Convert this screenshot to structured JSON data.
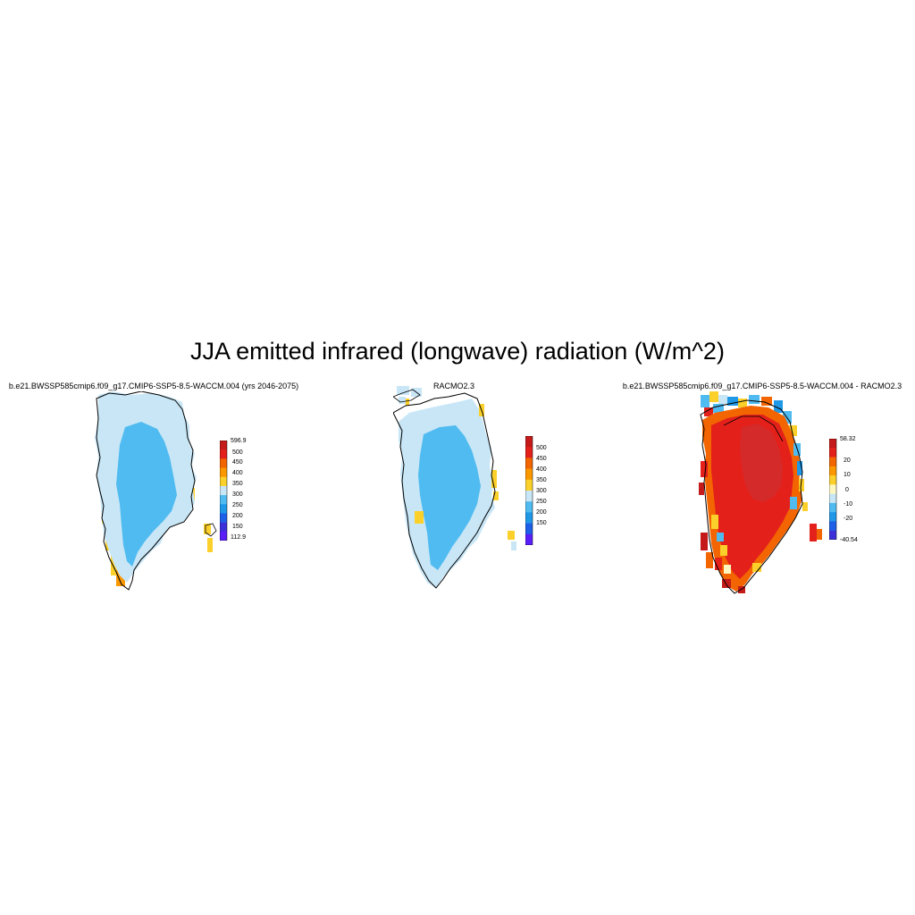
{
  "title": "JJA emitted infrared (longwave) radiation (W/m^2)",
  "panels": [
    {
      "title": "b.e21.BWSSP585cmip6.f09_g17.CMIP6-SSP5-8.5-WACCM.004 (yrs 2046-2075)",
      "colorbar": {
        "labels": [
          "596.9",
          "500",
          "450",
          "400",
          "350",
          "300",
          "250",
          "200",
          "150",
          "112.9"
        ],
        "colors": [
          "#c41a1a",
          "#e4201b",
          "#f26500",
          "#fb9800",
          "#fcd02a",
          "#c8e6f6",
          "#50bbf0",
          "#2098e8",
          "#1e5fe8",
          "#3c30d8",
          "#5a1ff8"
        ]
      }
    },
    {
      "title": "RACMO2.3",
      "colorbar": {
        "labels": [
          "500",
          "450",
          "400",
          "350",
          "300",
          "250",
          "200",
          "150"
        ],
        "colors": [
          "#c41a1a",
          "#e4201b",
          "#f26500",
          "#fb9800",
          "#fcd02a",
          "#c8e6f6",
          "#50bbf0",
          "#2098e8",
          "#1e5fe8",
          "#5a1ff8"
        ]
      }
    },
    {
      "title": "b.e21.BWSSP585cmip6.f09_g17.CMIP6-SSP5-8.5-WACCM.004 - RACMO2.3",
      "colorbar": {
        "labels": [
          "58.32",
          "20",
          "10",
          "0",
          "-10",
          "-20",
          "-40.54"
        ],
        "colors": [
          "#c41a1a",
          "#e4201b",
          "#f26500",
          "#fb9800",
          "#fcd02a",
          "#fef8c0",
          "#c8e6f6",
          "#50bbf0",
          "#2098e8",
          "#1e5fe8",
          "#3c30d8"
        ]
      }
    }
  ],
  "map_colors": {
    "ice_interior": "#50bbf0",
    "ice_margin": "#c8e6f6",
    "coast_warm": "#fcd02a",
    "coast_orange": "#fb9800",
    "diff_core": "#d42a2a",
    "diff_main": "#e4201b",
    "diff_orange": "#f26500",
    "diff_yellow": "#fcd02a",
    "diff_blue": "#50bbf0"
  }
}
